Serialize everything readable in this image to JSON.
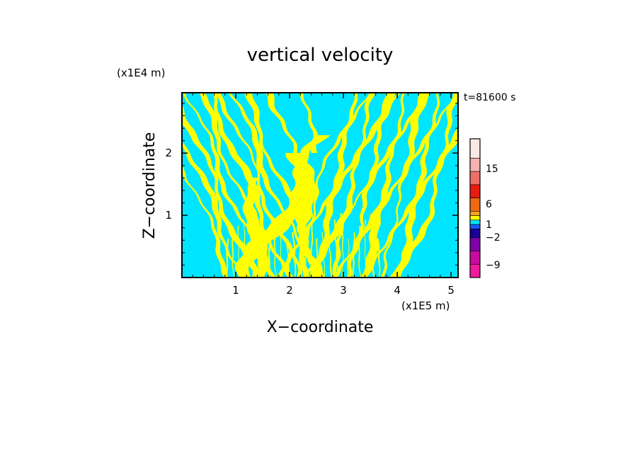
{
  "chart_data": {
    "type": "heatmap",
    "title": "vertical velocity",
    "xlabel": "X−coordinate",
    "ylabel": "Z−coordinate",
    "x_unit": "(x1E5 m)",
    "y_unit": "(x1E4 m)",
    "time_label": "t=81600 s",
    "xlim": [
      0.0,
      5.13
    ],
    "ylim": [
      0.0,
      2.97
    ],
    "x_ticks": [
      1,
      2,
      3,
      4,
      5
    ],
    "y_ticks": [
      1,
      2
    ],
    "colorbar": {
      "levels_top_to_bottom": [
        "#fbe9e6",
        "#f4b3ae",
        "#ee6f68",
        "#ea1a10",
        "#ef6a12",
        "#f7a521",
        "#ffff00",
        "#00e5ff",
        "#1a5aff",
        "#1b0099",
        "#7e02a8",
        "#c80a9e",
        "#f01a9c"
      ],
      "labels": [
        "15",
        "6",
        "1",
        "−2",
        "−9"
      ]
    },
    "dominant_colors": {
      "positive": "#ffff00",
      "negative": "#00e5ff"
    }
  }
}
